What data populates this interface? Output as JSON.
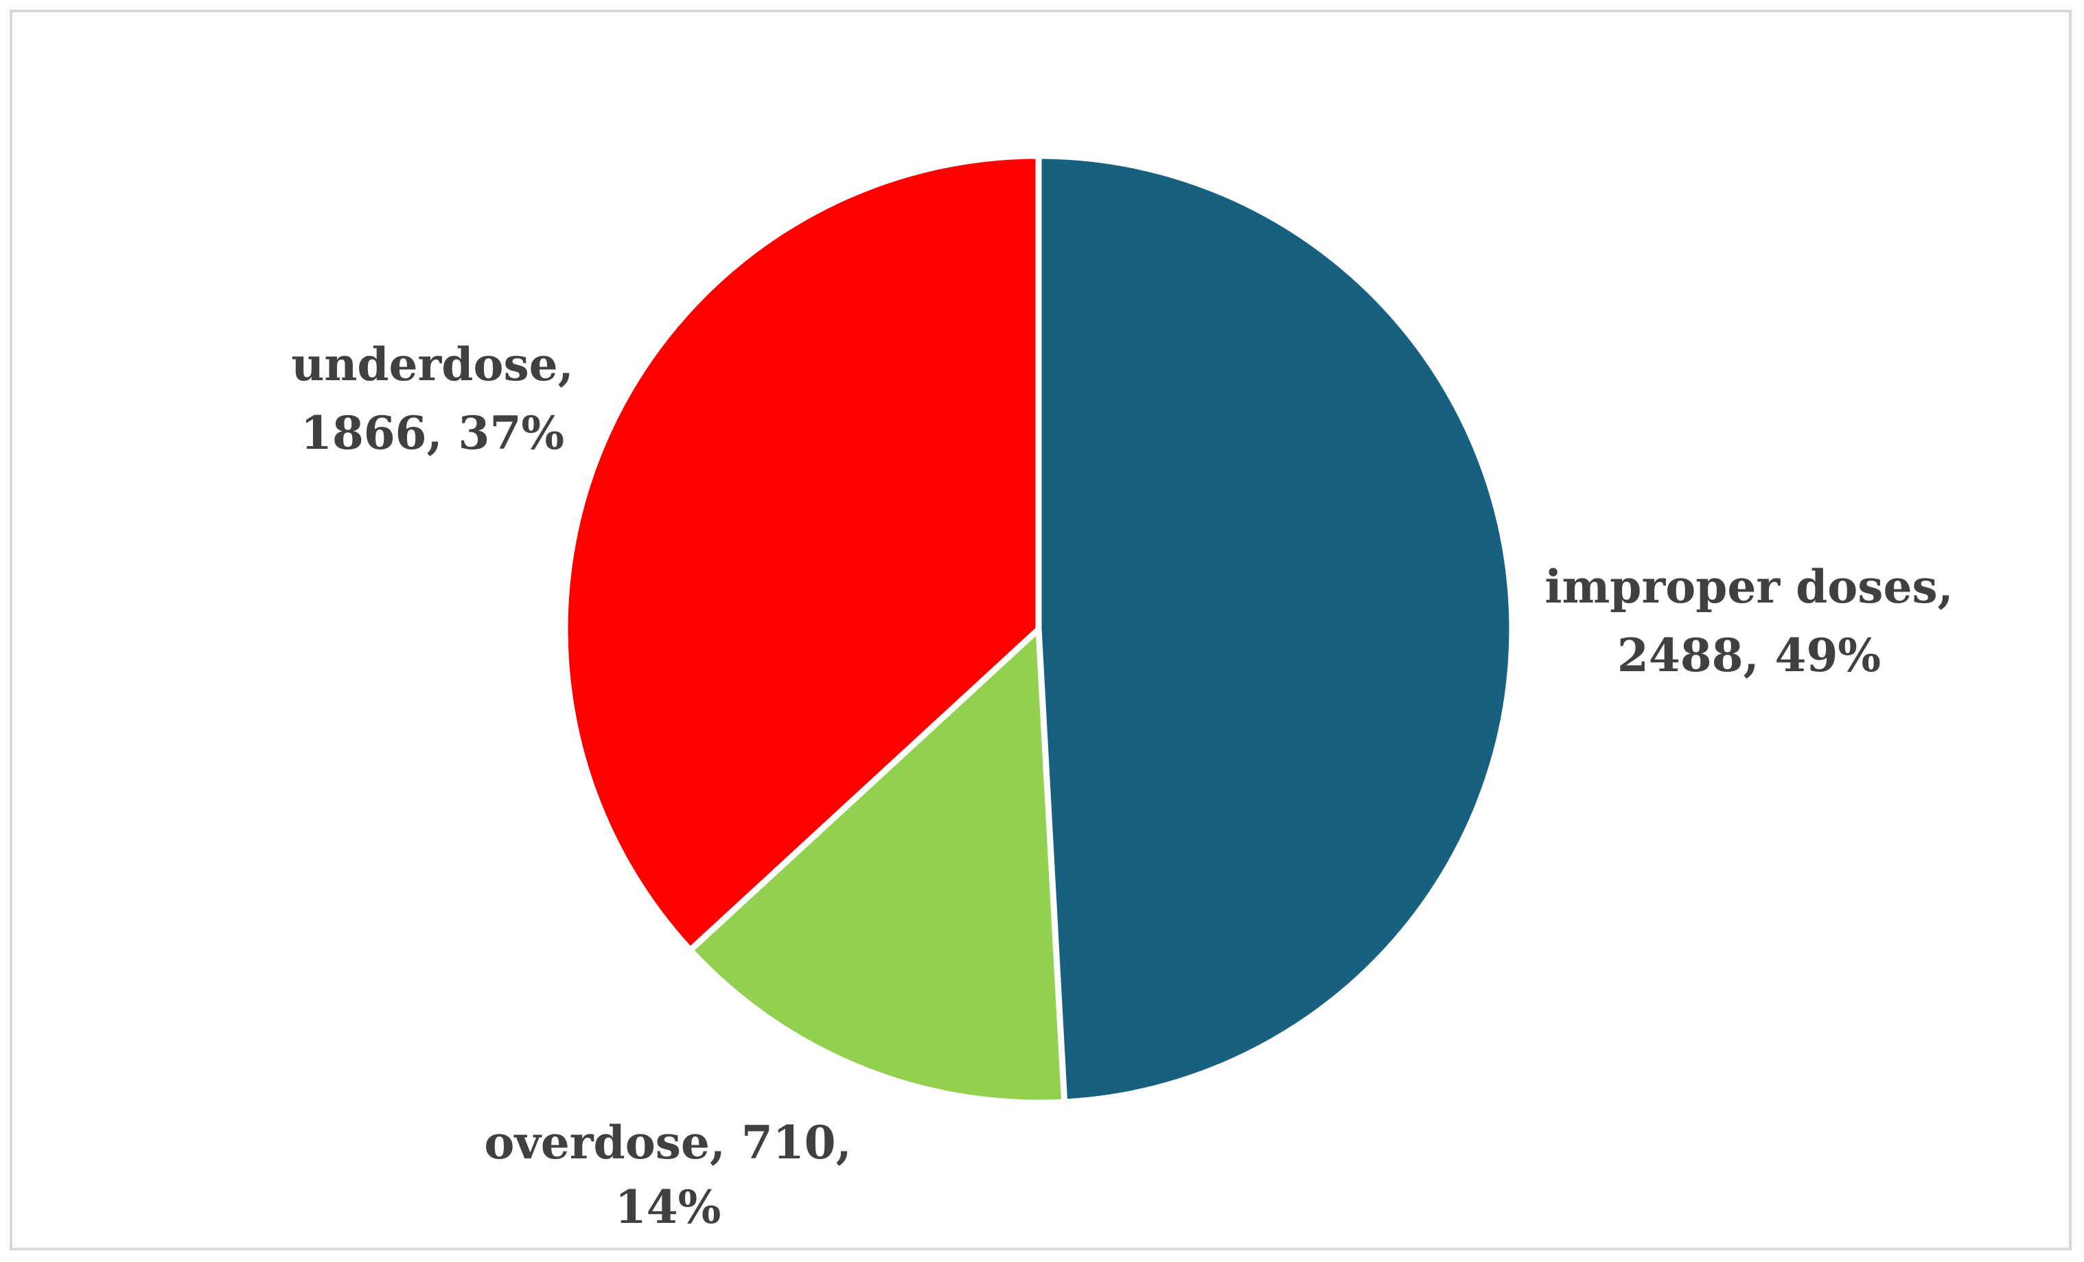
{
  "chart_data": {
    "type": "pie",
    "title": "",
    "start_angle_deg": 0,
    "direction": "clockwise",
    "slices": [
      {
        "name": "improper doses",
        "value": 2488,
        "percent": "49%",
        "color": "#17607f"
      },
      {
        "name": "overdose",
        "value": 710,
        "percent": "14%",
        "color": "#92d050"
      },
      {
        "name": "underdose",
        "value": 1866,
        "percent": "37%",
        "color": "#ff0000"
      }
    ],
    "labels": [
      {
        "line1": "improper doses,",
        "line2": "2488, 49%"
      },
      {
        "line1": "overdose, 710,",
        "line2": "14%"
      },
      {
        "line1": "underdose,",
        "line2": "1866, 37%"
      }
    ],
    "separator_color": "#ffffff"
  }
}
